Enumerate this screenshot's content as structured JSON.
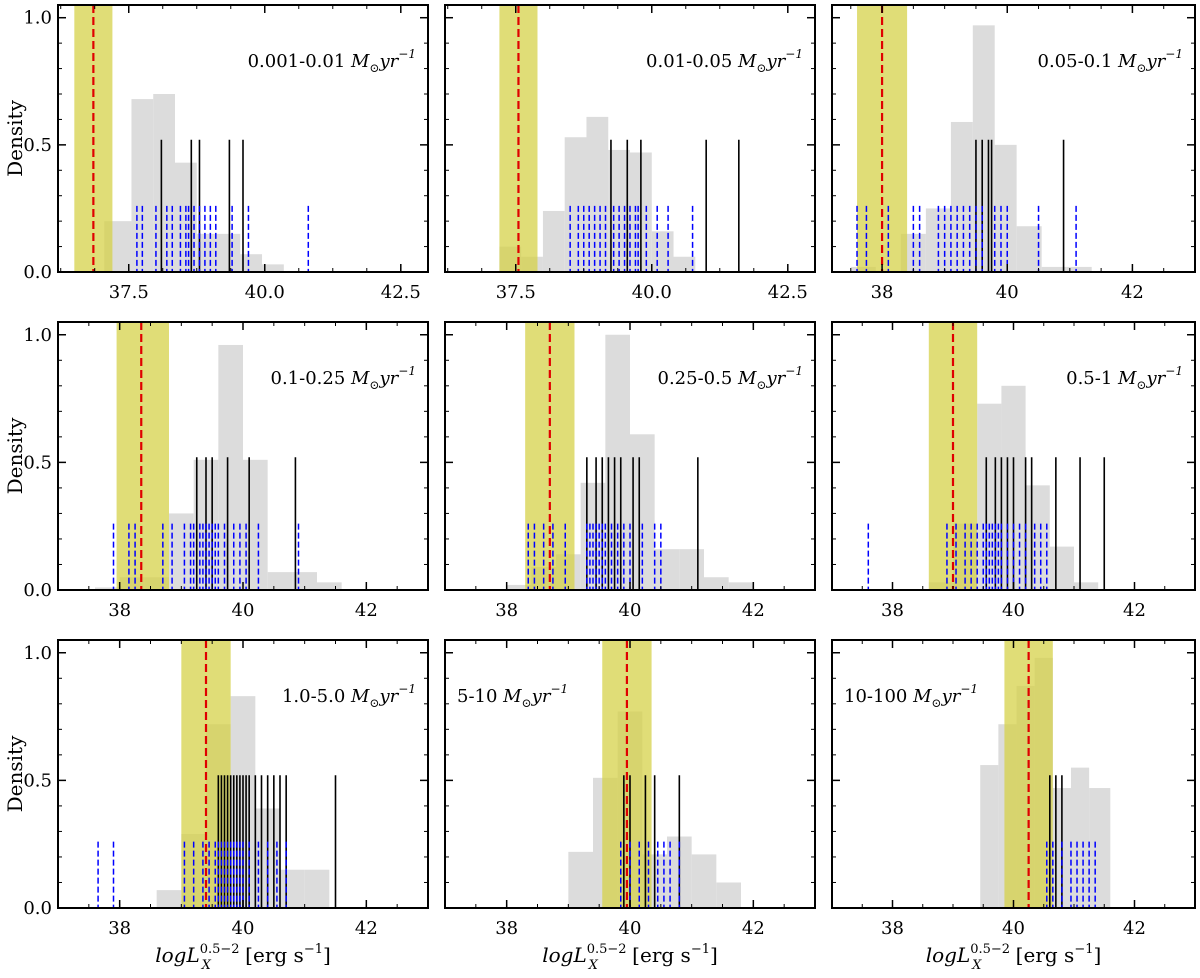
{
  "chart_data": {
    "type": "histogram-grid",
    "ylabel": "Density",
    "xlabel_prefix": "log",
    "xlabel_L": "L",
    "xlabel_sup": "0.5−2",
    "xlabel_sub": "X",
    "xlabel_units": "[erg s",
    "xlabel_units_sup": "−1",
    "xlabel_units_close": "]",
    "ytick_labels": [
      "0.0",
      "0.5",
      "1.0"
    ],
    "ylim": [
      0,
      1.05
    ],
    "colors": {
      "hist": "#dcdcdc",
      "band": "#d6d24a",
      "median": "#e00000",
      "black_lines": "#000000",
      "blue_lines": "#0000ff"
    },
    "panels": [
      {
        "label": "0.001-0.01",
        "unit": "M",
        "unit_sub": "⊙",
        "unit_rest": "yr",
        "unit_sup": "−1",
        "label_pos": "right",
        "xlim": [
          36.2,
          43.0
        ],
        "xticks": [
          37.5,
          40.0,
          42.5
        ],
        "xtick_labels": [
          "37.5",
          "40.0",
          "42.5"
        ],
        "band": [
          36.5,
          37.2
        ],
        "median": 36.85,
        "hist": [
          {
            "x0": 37.05,
            "x1": 37.55,
            "h": 0.2
          },
          {
            "x0": 37.55,
            "x1": 37.95,
            "h": 0.68
          },
          {
            "x0": 37.95,
            "x1": 38.35,
            "h": 0.7
          },
          {
            "x0": 38.35,
            "x1": 38.75,
            "h": 0.43
          },
          {
            "x0": 38.75,
            "x1": 39.15,
            "h": 0.15
          },
          {
            "x0": 39.15,
            "x1": 39.55,
            "h": 0.15
          },
          {
            "x0": 39.55,
            "x1": 39.95,
            "h": 0.07
          },
          {
            "x0": 39.95,
            "x1": 40.35,
            "h": 0.03
          }
        ],
        "black": [
          38.1,
          38.65,
          38.8,
          39.35,
          39.6
        ],
        "blue": [
          37.65,
          37.75,
          38.0,
          38.2,
          38.3,
          38.45,
          38.55,
          38.6,
          38.7,
          38.8,
          38.9,
          39.0,
          39.1,
          39.4,
          39.7,
          40.8
        ]
      },
      {
        "label": "0.01-0.05",
        "unit": "M",
        "unit_sub": "⊙",
        "unit_rest": "yr",
        "unit_sup": "−1",
        "label_pos": "right",
        "xlim": [
          36.2,
          43.0
        ],
        "xticks": [
          37.5,
          40.0,
          42.5
        ],
        "xtick_labels": [
          "37.5",
          "40.0",
          "42.5"
        ],
        "band": [
          37.2,
          37.9
        ],
        "median": 37.55,
        "hist": [
          {
            "x0": 37.2,
            "x1": 37.6,
            "h": 0.1
          },
          {
            "x0": 37.6,
            "x1": 38.0,
            "h": 0.06
          },
          {
            "x0": 38.0,
            "x1": 38.4,
            "h": 0.24
          },
          {
            "x0": 38.4,
            "x1": 38.8,
            "h": 0.53
          },
          {
            "x0": 38.8,
            "x1": 39.2,
            "h": 0.61
          },
          {
            "x0": 39.2,
            "x1": 39.6,
            "h": 0.48
          },
          {
            "x0": 39.6,
            "x1": 40.0,
            "h": 0.47
          },
          {
            "x0": 40.0,
            "x1": 40.4,
            "h": 0.16
          },
          {
            "x0": 40.4,
            "x1": 40.8,
            "h": 0.06
          }
        ],
        "black": [
          39.25,
          39.55,
          39.8,
          41.0,
          41.6
        ],
        "blue": [
          38.5,
          38.65,
          38.75,
          38.85,
          38.95,
          39.05,
          39.15,
          39.3,
          39.4,
          39.5,
          39.6,
          39.7,
          39.75,
          39.9,
          40.1,
          40.3,
          40.75
        ]
      },
      {
        "label": "0.05-0.1",
        "unit": "M",
        "unit_sub": "⊙",
        "unit_rest": "yr",
        "unit_sup": "−1",
        "label_pos": "right",
        "xlim": [
          37.2,
          43.0
        ],
        "xticks": [
          38,
          40,
          42
        ],
        "xtick_labels": [
          "38",
          "40",
          "42"
        ],
        "band": [
          37.6,
          38.4
        ],
        "median": 38.0,
        "hist": [
          {
            "x0": 37.5,
            "x1": 37.9,
            "h": 0.02
          },
          {
            "x0": 38.3,
            "x1": 38.7,
            "h": 0.15
          },
          {
            "x0": 38.7,
            "x1": 39.1,
            "h": 0.25
          },
          {
            "x0": 39.1,
            "x1": 39.45,
            "h": 0.59
          },
          {
            "x0": 39.45,
            "x1": 39.8,
            "h": 0.97
          },
          {
            "x0": 39.8,
            "x1": 40.15,
            "h": 0.5
          },
          {
            "x0": 40.15,
            "x1": 40.55,
            "h": 0.18
          },
          {
            "x0": 40.55,
            "x1": 40.95,
            "h": 0.02
          },
          {
            "x0": 40.95,
            "x1": 41.35,
            "h": 0.02
          }
        ],
        "black": [
          39.5,
          39.6,
          39.7,
          39.75,
          40.9
        ],
        "blue": [
          37.6,
          37.75,
          38.1,
          38.5,
          38.6,
          38.9,
          39.0,
          39.1,
          39.2,
          39.3,
          39.4,
          39.5,
          39.6,
          39.8,
          39.9,
          40.0,
          40.5,
          41.1
        ]
      },
      {
        "label": "0.1-0.25",
        "unit": "M",
        "unit_sub": "⊙",
        "unit_rest": "yr",
        "unit_sup": "−1",
        "label_pos": "right",
        "xlim": [
          37.0,
          43.0
        ],
        "xticks": [
          38,
          40,
          42
        ],
        "xtick_labels": [
          "38",
          "40",
          "42"
        ],
        "band": [
          37.95,
          38.8
        ],
        "median": 38.35,
        "hist": [
          {
            "x0": 37.6,
            "x1": 38.0,
            "h": 0.01
          },
          {
            "x0": 38.0,
            "x1": 38.4,
            "h": 0.05
          },
          {
            "x0": 38.4,
            "x1": 38.8,
            "h": 0.05
          },
          {
            "x0": 38.8,
            "x1": 39.2,
            "h": 0.3
          },
          {
            "x0": 39.2,
            "x1": 39.6,
            "h": 0.51
          },
          {
            "x0": 39.6,
            "x1": 40.0,
            "h": 0.96
          },
          {
            "x0": 40.0,
            "x1": 40.4,
            "h": 0.51
          },
          {
            "x0": 40.4,
            "x1": 40.8,
            "h": 0.07
          },
          {
            "x0": 40.8,
            "x1": 41.2,
            "h": 0.07
          },
          {
            "x0": 41.2,
            "x1": 41.6,
            "h": 0.03
          }
        ],
        "black": [
          39.25,
          39.4,
          39.5,
          39.75,
          40.1,
          40.85
        ],
        "blue": [
          37.9,
          38.15,
          38.25,
          38.7,
          38.85,
          39.05,
          39.15,
          39.2,
          39.3,
          39.35,
          39.4,
          39.45,
          39.5,
          39.55,
          39.6,
          39.7,
          39.85,
          39.95,
          40.05,
          40.25,
          40.9
        ]
      },
      {
        "label": "0.25-0.5",
        "unit": "M",
        "unit_sub": "⊙",
        "unit_rest": "yr",
        "unit_sup": "−1",
        "label_pos": "right",
        "xlim": [
          37.0,
          43.0
        ],
        "xticks": [
          38,
          40,
          42
        ],
        "xtick_labels": [
          "38",
          "40",
          "42"
        ],
        "band": [
          38.3,
          39.1
        ],
        "median": 38.7,
        "hist": [
          {
            "x0": 38.0,
            "x1": 38.4,
            "h": 0.02
          },
          {
            "x0": 38.4,
            "x1": 38.8,
            "h": 0.09
          },
          {
            "x0": 38.8,
            "x1": 39.2,
            "h": 0.14
          },
          {
            "x0": 39.2,
            "x1": 39.6,
            "h": 0.42
          },
          {
            "x0": 39.6,
            "x1": 40.0,
            "h": 1.0
          },
          {
            "x0": 40.0,
            "x1": 40.4,
            "h": 0.61
          },
          {
            "x0": 40.4,
            "x1": 40.8,
            "h": 0.16
          },
          {
            "x0": 40.8,
            "x1": 41.2,
            "h": 0.16
          },
          {
            "x0": 41.2,
            "x1": 41.6,
            "h": 0.05
          },
          {
            "x0": 41.6,
            "x1": 42.0,
            "h": 0.03
          }
        ],
        "black": [
          39.3,
          39.45,
          39.55,
          39.65,
          39.75,
          39.85,
          40.05,
          40.15,
          41.1
        ],
        "blue": [
          38.35,
          38.45,
          38.6,
          38.75,
          38.95,
          39.3,
          39.35,
          39.4,
          39.45,
          39.5,
          39.55,
          39.6,
          39.7,
          39.8,
          39.9,
          40.0,
          40.2,
          40.4,
          40.5
        ]
      },
      {
        "label": "0.5-1",
        "unit": "M",
        "unit_sub": "⊙",
        "unit_rest": "yr",
        "unit_sup": "−1",
        "label_pos": "right",
        "xlim": [
          37.0,
          43.0
        ],
        "xticks": [
          38,
          40,
          42
        ],
        "xtick_labels": [
          "38",
          "40",
          "42"
        ],
        "band": [
          38.6,
          39.4
        ],
        "median": 39.0,
        "hist": [
          {
            "x0": 38.6,
            "x1": 39.0,
            "h": 0.03
          },
          {
            "x0": 39.0,
            "x1": 39.4,
            "h": 0.26
          },
          {
            "x0": 39.4,
            "x1": 39.8,
            "h": 0.73
          },
          {
            "x0": 39.8,
            "x1": 40.2,
            "h": 0.8
          },
          {
            "x0": 40.2,
            "x1": 40.6,
            "h": 0.41
          },
          {
            "x0": 40.6,
            "x1": 41.0,
            "h": 0.17
          },
          {
            "x0": 41.0,
            "x1": 41.4,
            "h": 0.03
          }
        ],
        "black": [
          39.55,
          39.7,
          39.8,
          39.9,
          40.0,
          40.2,
          40.3,
          40.7,
          41.1,
          41.5
        ],
        "blue": [
          37.6,
          38.9,
          39.05,
          39.2,
          39.3,
          39.4,
          39.5,
          39.55,
          39.6,
          39.65,
          39.7,
          39.75,
          39.8,
          39.9,
          40.0,
          40.1,
          40.2,
          40.35,
          40.45,
          40.55
        ]
      },
      {
        "label": "1.0-5.0",
        "unit": "M",
        "unit_sub": "⊙",
        "unit_rest": "yr",
        "unit_sup": "−1",
        "label_pos": "right",
        "xlim": [
          37.0,
          43.0
        ],
        "xticks": [
          38,
          40,
          42
        ],
        "xtick_labels": [
          "38",
          "40",
          "42"
        ],
        "band": [
          39.0,
          39.8
        ],
        "median": 39.4,
        "hist": [
          {
            "x0": 38.6,
            "x1": 39.0,
            "h": 0.07
          },
          {
            "x0": 39.0,
            "x1": 39.4,
            "h": 0.29
          },
          {
            "x0": 39.4,
            "x1": 39.8,
            "h": 0.72
          },
          {
            "x0": 39.8,
            "x1": 40.2,
            "h": 0.83
          },
          {
            "x0": 40.2,
            "x1": 40.6,
            "h": 0.39
          },
          {
            "x0": 40.6,
            "x1": 41.0,
            "h": 0.15
          },
          {
            "x0": 41.0,
            "x1": 41.4,
            "h": 0.15
          }
        ],
        "black": [
          39.6,
          39.65,
          39.7,
          39.75,
          39.8,
          39.85,
          39.9,
          39.95,
          40.0,
          40.05,
          40.1,
          40.2,
          40.3,
          40.4,
          40.5,
          40.6,
          40.7,
          41.5
        ],
        "blue": [
          37.65,
          37.9,
          39.05,
          39.2,
          39.35,
          39.45,
          39.55,
          39.6,
          39.65,
          39.7,
          39.75,
          39.8,
          39.85,
          39.9,
          39.95,
          40.0,
          40.1,
          40.25,
          40.4,
          40.55,
          40.7
        ]
      },
      {
        "label": "5-10",
        "unit": "M",
        "unit_sub": "⊙",
        "unit_rest": "yr",
        "unit_sup": "−1",
        "label_pos": "left",
        "xlim": [
          37.0,
          43.0
        ],
        "xticks": [
          38,
          40,
          42
        ],
        "xtick_labels": [
          "38",
          "40",
          "42"
        ],
        "band": [
          39.55,
          40.35
        ],
        "median": 39.95,
        "hist": [
          {
            "x0": 39.0,
            "x1": 39.4,
            "h": 0.22
          },
          {
            "x0": 39.4,
            "x1": 39.8,
            "h": 0.51
          },
          {
            "x0": 39.8,
            "x1": 40.2,
            "h": 0.77
          },
          {
            "x0": 40.2,
            "x1": 40.6,
            "h": 0.21
          },
          {
            "x0": 40.6,
            "x1": 41.0,
            "h": 0.28
          },
          {
            "x0": 41.0,
            "x1": 41.4,
            "h": 0.21
          },
          {
            "x0": 41.4,
            "x1": 41.8,
            "h": 0.1
          }
        ],
        "black": [
          39.9,
          40.0,
          40.25,
          40.4,
          40.8
        ],
        "blue": [
          39.85,
          40.0,
          40.15,
          40.3,
          40.45,
          40.55,
          40.65,
          40.8
        ]
      },
      {
        "label": "10-100",
        "unit": "M",
        "unit_sub": "⊙",
        "unit_rest": "yr",
        "unit_sup": "−1",
        "label_pos": "left",
        "xlim": [
          37.0,
          43.0
        ],
        "xticks": [
          38,
          40,
          42
        ],
        "xtick_labels": [
          "38",
          "40",
          "42"
        ],
        "band": [
          39.85,
          40.65
        ],
        "median": 40.25,
        "hist": [
          {
            "x0": 39.45,
            "x1": 39.75,
            "h": 0.56
          },
          {
            "x0": 39.75,
            "x1": 40.05,
            "h": 0.72
          },
          {
            "x0": 40.05,
            "x1": 40.35,
            "h": 0.87
          },
          {
            "x0": 40.35,
            "x1": 40.65,
            "h": 0.98
          },
          {
            "x0": 40.65,
            "x1": 40.95,
            "h": 0.47
          },
          {
            "x0": 40.95,
            "x1": 41.25,
            "h": 0.55
          },
          {
            "x0": 41.25,
            "x1": 41.6,
            "h": 0.47
          }
        ],
        "black": [
          40.6,
          40.7,
          40.8
        ],
        "blue": [
          40.55,
          40.65,
          40.8,
          40.95,
          41.05,
          41.15,
          41.25,
          41.35
        ]
      }
    ]
  }
}
